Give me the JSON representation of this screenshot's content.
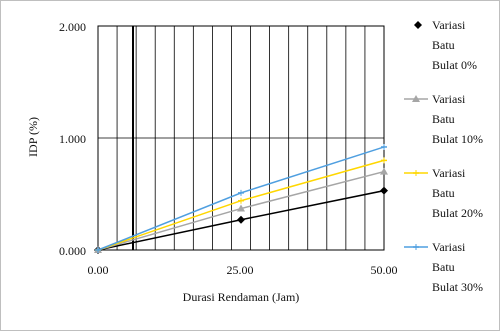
{
  "chart_data": {
    "type": "line",
    "xlabel": "Durasi Rendaman (Jam)",
    "ylabel": "IDP (%)",
    "xlim": [
      0,
      48
    ],
    "ylim": [
      0,
      2
    ],
    "x_ticks": [
      "0.00",
      "25.00",
      "50.00"
    ],
    "y_ticks": [
      "0.000",
      "1.000",
      "2.000"
    ],
    "grid": true,
    "legend_position": "right",
    "series": [
      {
        "name": "Variasi Batu Bulat 0%",
        "name_lines": [
          "Variasi",
          "Batu",
          "Bulat 0%"
        ],
        "color": "#000000",
        "marker": "diamond",
        "x": [
          0,
          24,
          48
        ],
        "y": [
          0.0,
          0.27,
          0.53
        ]
      },
      {
        "name": "Variasi Batu Bulat 10%",
        "name_lines": [
          "Variasi",
          "Batu",
          "Bulat 10%"
        ],
        "color": "#a6a6a6",
        "marker": "triangle",
        "x": [
          0,
          24,
          48
        ],
        "y": [
          0.0,
          0.37,
          0.7
        ]
      },
      {
        "name": "Variasi Batu Bulat 20%",
        "name_lines": [
          "Variasi",
          "Batu",
          "Bulat 20%"
        ],
        "color": "#ffd700",
        "marker": "dash",
        "x": [
          0,
          24,
          48
        ],
        "y": [
          0.0,
          0.44,
          0.8
        ]
      },
      {
        "name": "Variasi Batu Bulat 30%",
        "name_lines": [
          "Variasi",
          "Batu",
          "Bulat 30%"
        ],
        "color": "#4f9fe0",
        "marker": "dash",
        "x": [
          0,
          24,
          48
        ],
        "y": [
          0.0,
          0.51,
          0.92
        ]
      }
    ]
  }
}
